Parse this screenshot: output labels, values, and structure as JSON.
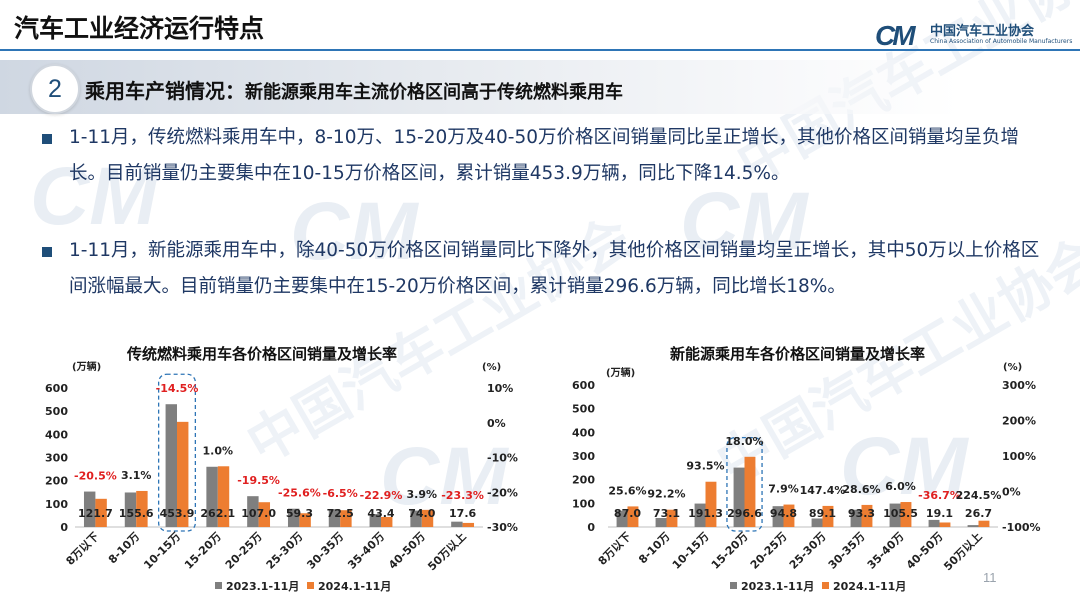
{
  "header": {
    "title": "汽车工业经济运行特点",
    "logo_mark": "CM",
    "logo_cn": "中国汽车工业协会",
    "logo_en": "China Association of Automobile Manufacturers"
  },
  "section": {
    "number": "2",
    "heading": "乘用车产销情况：",
    "subheading": "新能源乘用车主流价格区间高于传统燃料乘用车"
  },
  "bullets": [
    "1-11月，传统燃料乘用车中，8-10万、15-20万及40-50万价格区间销量同比呈正增长，其他价格区间销量均呈负增长。目前销量仍主要集中在10-15万价格区间，累计销量453.9万辆，同比下降14.5%。",
    "1-11月，新能源乘用车中，除40-50万价格区间销量同比下降外，其他价格区间销量均呈正增长，其中50万以上价格区间涨幅最大。目前销量仍主要集中在15-20万价格区间，累计销量296.6万辆，同比增长18%。"
  ],
  "colors": {
    "series_2023": "#7f7f7f",
    "series_2024": "#ed7d31",
    "negative": "#e02020",
    "highlight_box": "#2e75b6",
    "accent": "#1f4e79"
  },
  "page_number": "11",
  "chart_data": [
    {
      "type": "bar",
      "title": "传统燃料乘用车各价格区间销量及增长率",
      "y_unit": "(万辆)",
      "y2_unit": "(%)",
      "categories": [
        "8万以下",
        "8-10万",
        "10-15万",
        "15-20万",
        "20-25万",
        "25-30万",
        "30-35万",
        "35-40万",
        "40-50万",
        "50万以上"
      ],
      "series": [
        {
          "name": "2023.1-11月",
          "values": [
            153,
            149,
            530,
            260,
            133,
            79,
            77,
            56,
            71,
            23
          ]
        },
        {
          "name": "2024.1-11月",
          "values": [
            121.7,
            155.6,
            453.9,
            262.1,
            107.0,
            59.3,
            72.5,
            43.4,
            74.0,
            17.6
          ]
        }
      ],
      "growth": [
        "-20.5%",
        "3.1%",
        "-14.5%",
        "1.0%",
        "-19.5%",
        "-25.6%",
        "-6.5%",
        "-22.9%",
        "3.9%",
        "-23.3%"
      ],
      "growth_values": [
        -20.5,
        3.1,
        -14.5,
        1.0,
        -19.5,
        -25.6,
        -6.5,
        -22.9,
        3.9,
        -23.3
      ],
      "ylim": [
        0,
        600
      ],
      "yticks": [
        "0",
        "100",
        "200",
        "300",
        "400",
        "500",
        "600"
      ],
      "y2lim": [
        -30,
        10
      ],
      "y2ticks": [
        "10%",
        "0%",
        "-10%",
        "-20%",
        "-30%"
      ],
      "highlight_index": 2
    },
    {
      "type": "bar",
      "title": "新能源乘用车各价格区间销量及增长率",
      "y_unit": "(万辆)",
      "y2_unit": "(%)",
      "categories": [
        "8万以下",
        "8-10万",
        "10-15万",
        "15-20万",
        "20-25万",
        "25-30万",
        "30-35万",
        "35-40万",
        "40-50万",
        "50万以上"
      ],
      "series": [
        {
          "name": "2023.1-11月",
          "values": [
            69,
            38,
            99,
            251,
            88,
            36,
            73,
            99,
            30,
            8
          ]
        },
        {
          "name": "2024.1-11月",
          "values": [
            87.0,
            73.1,
            191.3,
            296.6,
            94.8,
            89.1,
            93.3,
            105.5,
            19.1,
            26.7
          ]
        }
      ],
      "growth": [
        "25.6%",
        "92.2%",
        "93.5%",
        "18.0%",
        "7.9%",
        "147.4%",
        "28.6%",
        "6.0%",
        "-36.7%",
        "224.5%"
      ],
      "growth_values": [
        25.6,
        92.2,
        93.5,
        18.0,
        7.9,
        147.4,
        28.6,
        6.0,
        -36.7,
        224.5
      ],
      "ylim": [
        0,
        600
      ],
      "yticks": [
        "0",
        "100",
        "200",
        "300",
        "400",
        "500",
        "600"
      ],
      "y2lim": [
        -100,
        300
      ],
      "y2ticks": [
        "300%",
        "200%",
        "100%",
        "0%",
        "-100%"
      ],
      "highlight_index": 3
    }
  ]
}
